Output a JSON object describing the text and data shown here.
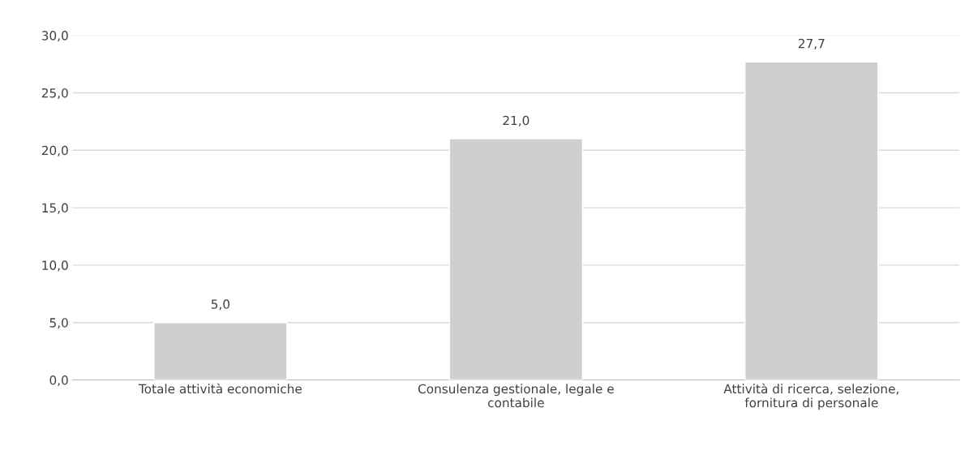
{
  "chart_data": {
    "type": "bar",
    "categories": [
      "Totale attività economiche",
      "Consulenza gestionale, legale e\ncontabile",
      "Attività di ricerca, selezione,\nfornitura di personale"
    ],
    "values": [
      5.0,
      21.0,
      27.7
    ],
    "color": "#d0cece",
    "value_labels": [
      "5,0",
      "21,0",
      "27,7"
    ],
    "ylim": [
      0,
      30
    ],
    "yticks": [
      {
        "value": 0,
        "label": "0,0"
      },
      {
        "value": 5,
        "label": "5,0"
      },
      {
        "value": 10,
        "label": "10,0"
      },
      {
        "value": 15,
        "label": "15,0"
      },
      {
        "value": 20,
        "label": "20,0"
      },
      {
        "value": 25,
        "label": "25,0"
      },
      {
        "value": 30,
        "label": "30,0"
      }
    ],
    "grid": "y"
  }
}
